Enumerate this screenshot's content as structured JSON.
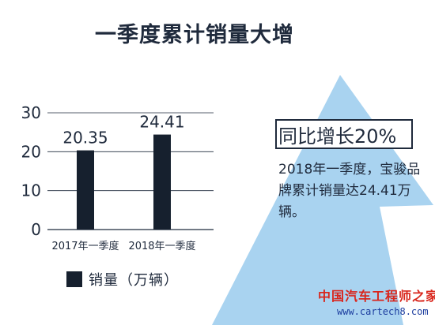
{
  "title": "一季度累计销量大增",
  "headline": "同比增长20%",
  "body_text": "2018年一季度，宝骏品牌累计销量达24.41万辆。",
  "legend": {
    "label": "销量（万辆）"
  },
  "watermark": {
    "name": "中国汽车工程师之家",
    "url": "www.cartech8.com"
  },
  "colors": {
    "bar": "#16202e",
    "text": "#1f2a3c",
    "arrow": "#a9d3f0",
    "gridline": "#1f2a3c"
  },
  "chart_data": {
    "type": "bar",
    "categories": [
      "2017年一季度",
      "2018年一季度"
    ],
    "values": [
      20.35,
      24.41
    ],
    "data_labels": [
      "20.35",
      "24.41"
    ],
    "yticks": [
      "0",
      "10",
      "20",
      "30"
    ],
    "ylim": [
      0,
      30
    ],
    "grid": true,
    "legend": "bottom-left"
  }
}
